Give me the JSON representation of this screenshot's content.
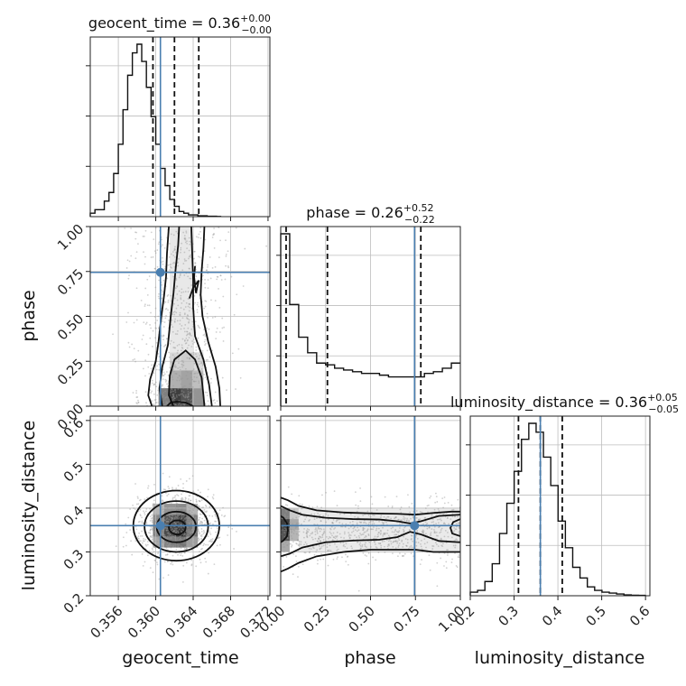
{
  "chart_data": {
    "type": "corner",
    "parameters": [
      "geocent_time",
      "phase",
      "luminosity_distance"
    ],
    "colors": {
      "truth": "#4a7fb0",
      "histogram": "#111111",
      "contour": "#111111"
    },
    "grid": true,
    "truths": {
      "geocent_time": 0.3605,
      "phase": 0.745,
      "luminosity_distance": 0.36
    },
    "marginals": [
      {
        "parameter": "geocent_time",
        "title_main": "geocent_time = 0.36",
        "title_sup": "+0.00",
        "title_sub": "−0.00",
        "median": 0.362,
        "quantiles": [
          0.3597,
          0.3646
        ],
        "range": [
          0.353,
          0.3722
        ],
        "ticks": [
          0.356,
          0.36,
          0.364,
          0.368,
          0.372
        ],
        "tick_labels": [
          "0.356",
          "0.360",
          "0.364",
          "0.368",
          "0.372"
        ],
        "bin_width": 0.0005,
        "counts": [
          2,
          4,
          4,
          9,
          14,
          25,
          42,
          62,
          82,
          95,
          100,
          90,
          75,
          58,
          42,
          28,
          18,
          10,
          6,
          3,
          2,
          1,
          1,
          0.5,
          0.5,
          0.2,
          0.2,
          0.1
        ]
      },
      {
        "parameter": "phase",
        "title_main": "phase = 0.26",
        "title_sup": "+0.52",
        "title_sub": "−0.22",
        "median": 0.26,
        "quantiles": [
          0.03,
          0.78
        ],
        "range": [
          0.0,
          1.0
        ],
        "ticks": [
          0.0,
          0.25,
          0.5,
          0.75,
          1.0
        ],
        "tick_labels": [
          "0.00",
          "0.25",
          "0.50",
          "0.75",
          "1.00"
        ],
        "bin_width": 0.05,
        "counts": [
          100,
          59,
          40,
          31,
          25,
          24,
          22,
          21,
          20,
          19,
          19,
          18,
          17,
          17,
          17,
          17,
          19,
          20,
          22,
          25
        ]
      },
      {
        "parameter": "luminosity_distance",
        "title_main": "luminosity_distance = 0.36",
        "title_sup": "+0.05",
        "title_sub": "−0.05",
        "median": 0.36,
        "quantiles": [
          0.31,
          0.41
        ],
        "range": [
          0.2,
          0.61
        ],
        "ticks": [
          0.2,
          0.3,
          0.4,
          0.5,
          0.6
        ],
        "tick_labels": [
          "0.2",
          "0.3",
          "0.4",
          "0.5",
          "0.6"
        ],
        "bin_width": 0.0167,
        "counts": [
          2,
          3,
          8,
          18,
          35,
          52,
          70,
          88,
          97,
          92,
          78,
          62,
          42,
          27,
          16,
          10,
          5,
          3,
          2,
          1.5,
          1,
          0.5,
          0.3,
          0.2
        ]
      }
    ],
    "pair_panels": [
      {
        "x": "geocent_time",
        "y": "phase",
        "x_tick_labels": [],
        "y_tick_labels": [
          "0.00",
          "0.25",
          "0.50",
          "0.75",
          "1.00"
        ],
        "y_ticks": [
          0.0,
          0.25,
          0.5,
          0.75,
          1.0
        ],
        "contours": [
          [
            [
              0.3596,
              0.0
            ],
            [
              0.3592,
              0.06
            ],
            [
              0.3594,
              0.15
            ],
            [
              0.36,
              0.25
            ],
            [
              0.3603,
              0.36
            ],
            [
              0.3606,
              0.5
            ],
            [
              0.3609,
              0.62
            ],
            [
              0.3611,
              0.72
            ],
            [
              0.3612,
              0.85
            ],
            [
              0.3614,
              1.0
            ]
          ],
          [
            [
              0.3669,
              0.0
            ],
            [
              0.3668,
              0.1
            ],
            [
              0.3664,
              0.22
            ],
            [
              0.3656,
              0.36
            ],
            [
              0.365,
              0.5
            ],
            [
              0.3648,
              0.62
            ],
            [
              0.3649,
              0.75
            ],
            [
              0.3651,
              0.88
            ],
            [
              0.3652,
              1.0
            ]
          ],
          [
            [
              0.3607,
              0.0
            ],
            [
              0.3604,
              0.1
            ],
            [
              0.3607,
              0.22
            ],
            [
              0.3613,
              0.34
            ],
            [
              0.3616,
              0.5
            ],
            [
              0.3619,
              0.63
            ],
            [
              0.3621,
              0.75
            ],
            [
              0.3624,
              0.9
            ],
            [
              0.3625,
              1.0
            ]
          ],
          [
            [
              0.366,
              0.0
            ],
            [
              0.3657,
              0.12
            ],
            [
              0.3651,
              0.26
            ],
            [
              0.3642,
              0.39
            ],
            [
              0.364,
              0.55
            ],
            [
              0.364,
              0.7
            ],
            [
              0.3639,
              0.85
            ],
            [
              0.3638,
              1.0
            ]
          ],
          [
            [
              0.3636,
              0.6
            ],
            [
              0.364,
              0.66
            ],
            [
              0.3646,
              0.7
            ],
            [
              0.3643,
              0.63
            ],
            [
              0.3641,
              0.72
            ],
            [
              0.3642,
              0.78
            ]
          ],
          [
            [
              0.3619,
              0.0
            ],
            [
              0.3614,
              0.06
            ],
            [
              0.3615,
              0.17
            ],
            [
              0.362,
              0.26
            ],
            [
              0.3632,
              0.31
            ],
            [
              0.3642,
              0.26
            ],
            [
              0.3649,
              0.16
            ],
            [
              0.3651,
              0.06
            ],
            [
              0.3652,
              0.0
            ]
          ],
          [
            [
              0.3612,
              0.0
            ],
            [
              0.3616,
              0.02
            ],
            [
              0.3622,
              0.025
            ],
            [
              0.3632,
              0.02
            ],
            [
              0.364,
              0.0
            ]
          ]
        ],
        "density_cells": [
          [
            0.3603,
            0.0,
            0.0012,
            0.1,
            0.55
          ],
          [
            0.3615,
            0.0,
            0.0012,
            0.1,
            0.85
          ],
          [
            0.3627,
            0.0,
            0.0012,
            0.1,
            0.75
          ],
          [
            0.3639,
            0.0,
            0.0012,
            0.1,
            0.45
          ],
          [
            0.3615,
            0.1,
            0.0012,
            0.1,
            0.32
          ],
          [
            0.3627,
            0.1,
            0.0012,
            0.1,
            0.38
          ],
          [
            0.3639,
            0.1,
            0.0012,
            0.1,
            0.25
          ],
          [
            0.3615,
            0.2,
            0.0012,
            0.1,
            0.15
          ],
          [
            0.3627,
            0.2,
            0.0012,
            0.1,
            0.18
          ],
          [
            0.3639,
            0.2,
            0.0012,
            0.1,
            0.12
          ],
          [
            0.3615,
            0.3,
            0.0024,
            0.7,
            0.06
          ]
        ]
      },
      {
        "x": "geocent_time",
        "y": "luminosity_distance",
        "x_tick_labels": [
          "0.356",
          "0.360",
          "0.364",
          "0.368",
          "0.372"
        ],
        "y_tick_labels": [
          "0.2",
          "0.3",
          "0.4",
          "0.5",
          "0.6"
        ],
        "y_ticks": [
          0.2,
          0.3,
          0.4,
          0.5,
          0.6
        ],
        "ellipses": [
          {
            "cx": 0.3622,
            "cy": 0.36,
            "rx": 0.0046,
            "ry": 0.08
          },
          {
            "cx": 0.3622,
            "cy": 0.358,
            "rx": 0.0034,
            "ry": 0.058
          },
          {
            "cx": 0.3622,
            "cy": 0.357,
            "rx": 0.0021,
            "ry": 0.035
          },
          {
            "cx": 0.3623,
            "cy": 0.356,
            "rx": 0.0009,
            "ry": 0.016
          }
        ],
        "density_cells": [
          [
            0.3597,
            0.31,
            0.0012,
            0.025,
            0.35
          ],
          [
            0.3609,
            0.31,
            0.0012,
            0.025,
            0.55
          ],
          [
            0.3621,
            0.31,
            0.0012,
            0.025,
            0.6
          ],
          [
            0.3633,
            0.31,
            0.0012,
            0.025,
            0.4
          ],
          [
            0.3597,
            0.335,
            0.0012,
            0.025,
            0.55
          ],
          [
            0.3609,
            0.335,
            0.0012,
            0.025,
            0.8
          ],
          [
            0.3621,
            0.335,
            0.0012,
            0.025,
            0.9
          ],
          [
            0.3633,
            0.335,
            0.0012,
            0.025,
            0.6
          ],
          [
            0.3597,
            0.36,
            0.0012,
            0.025,
            0.5
          ],
          [
            0.3609,
            0.36,
            0.0012,
            0.025,
            0.75
          ],
          [
            0.3621,
            0.36,
            0.0012,
            0.025,
            0.85
          ],
          [
            0.3633,
            0.36,
            0.0012,
            0.025,
            0.55
          ],
          [
            0.3597,
            0.385,
            0.0012,
            0.025,
            0.3
          ],
          [
            0.3609,
            0.385,
            0.0012,
            0.025,
            0.45
          ],
          [
            0.3621,
            0.385,
            0.0012,
            0.025,
            0.5
          ],
          [
            0.3633,
            0.385,
            0.0012,
            0.025,
            0.3
          ]
        ]
      },
      {
        "x": "phase",
        "y": "luminosity_distance",
        "x_tick_labels": [
          "0.00",
          "0.25",
          "0.50",
          "0.75",
          "1.00"
        ],
        "y_tick_labels": [],
        "y_ticks": [
          0.2,
          0.3,
          0.4,
          0.5,
          0.6
        ],
        "contours": [
          [
            [
              0.0,
              0.424
            ],
            [
              0.04,
              0.418
            ],
            [
              0.1,
              0.405
            ],
            [
              0.2,
              0.395
            ],
            [
              0.35,
              0.39
            ],
            [
              0.5,
              0.388
            ],
            [
              0.65,
              0.387
            ],
            [
              0.75,
              0.385
            ],
            [
              0.85,
              0.389
            ],
            [
              0.95,
              0.392
            ],
            [
              1.0,
              0.392
            ]
          ],
          [
            [
              0.0,
              0.255
            ],
            [
              0.04,
              0.262
            ],
            [
              0.1,
              0.275
            ],
            [
              0.2,
              0.29
            ],
            [
              0.35,
              0.3
            ],
            [
              0.5,
              0.305
            ],
            [
              0.65,
              0.305
            ],
            [
              0.75,
              0.305
            ],
            [
              0.85,
              0.3
            ],
            [
              0.95,
              0.3
            ],
            [
              1.0,
              0.3
            ]
          ],
          [
            [
              0.0,
              0.405
            ],
            [
              0.05,
              0.395
            ],
            [
              0.12,
              0.385
            ],
            [
              0.25,
              0.378
            ],
            [
              0.4,
              0.375
            ],
            [
              0.55,
              0.374
            ],
            [
              0.65,
              0.37
            ],
            [
              0.72,
              0.365
            ],
            [
              0.78,
              0.37
            ],
            [
              0.88,
              0.382
            ],
            [
              1.0,
              0.385
            ]
          ],
          [
            [
              0.0,
              0.29
            ],
            [
              0.05,
              0.296
            ],
            [
              0.12,
              0.31
            ],
            [
              0.25,
              0.322
            ],
            [
              0.4,
              0.326
            ],
            [
              0.55,
              0.328
            ],
            [
              0.65,
              0.334
            ],
            [
              0.72,
              0.346
            ],
            [
              0.78,
              0.34
            ],
            [
              0.88,
              0.325
            ],
            [
              1.0,
              0.322
            ]
          ],
          [
            [
              0.0,
              0.382
            ],
            [
              0.015,
              0.378
            ],
            [
              0.035,
              0.365
            ],
            [
              0.04,
              0.35
            ],
            [
              0.035,
              0.336
            ],
            [
              0.015,
              0.326
            ],
            [
              0.0,
              0.322
            ]
          ],
          [
            [
              1.0,
              0.375
            ],
            [
              0.96,
              0.368
            ],
            [
              0.945,
              0.355
            ],
            [
              0.955,
              0.342
            ],
            [
              1.0,
              0.336
            ]
          ]
        ],
        "density_cells": [
          [
            0.0,
            0.325,
            0.05,
            0.025,
            0.75
          ],
          [
            0.0,
            0.35,
            0.05,
            0.025,
            0.85
          ],
          [
            0.0,
            0.375,
            0.05,
            0.025,
            0.55
          ],
          [
            0.0,
            0.3,
            0.05,
            0.025,
            0.35
          ],
          [
            0.05,
            0.325,
            0.05,
            0.025,
            0.3
          ],
          [
            0.05,
            0.35,
            0.05,
            0.025,
            0.35
          ],
          [
            0.05,
            0.375,
            0.05,
            0.025,
            0.2
          ],
          [
            0.1,
            0.3,
            0.9,
            0.1,
            0.05
          ]
        ]
      }
    ]
  }
}
